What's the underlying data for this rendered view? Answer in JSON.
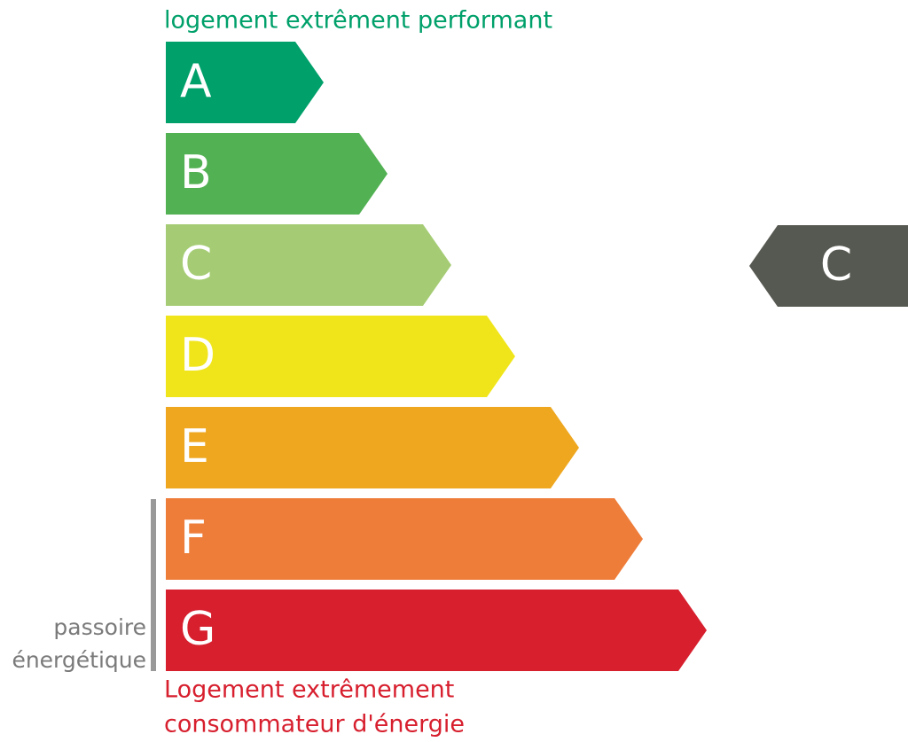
{
  "top_label": "logement extrêment performant",
  "classes": [
    {
      "letter": "A",
      "color": "#00a06a"
    },
    {
      "letter": "B",
      "color": "#52b153"
    },
    {
      "letter": "C",
      "color": "#a5cc74"
    },
    {
      "letter": "D",
      "color": "#f0e51b"
    },
    {
      "letter": "E",
      "color": "#eea71f"
    },
    {
      "letter": "F",
      "color": "#ee7d3a"
    },
    {
      "letter": "G",
      "color": "#d71f2e"
    }
  ],
  "bottom_label": [
    "Logement extrêmement",
    "consommateur d'énergie"
  ],
  "side_label": [
    "passoire",
    "énergétique"
  ],
  "current_class": {
    "letter": "C",
    "color": "#565951"
  }
}
